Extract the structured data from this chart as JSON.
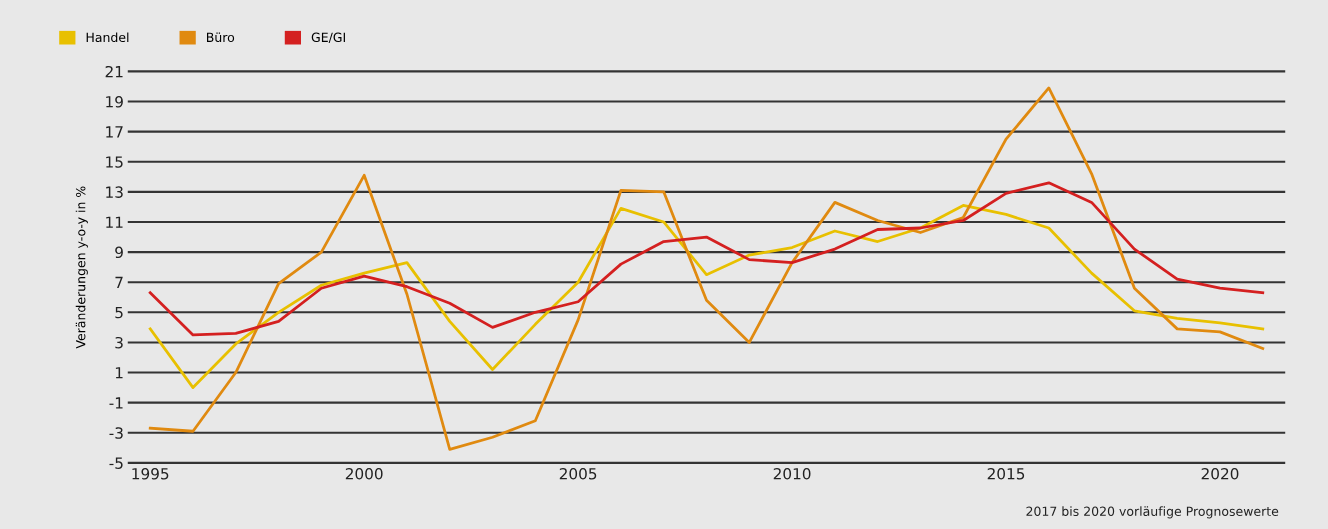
{
  "chart_data": {
    "type": "line",
    "ylabel": "Veränderungen y-o-y in %",
    "x": [
      1995,
      1996,
      1997,
      1998,
      1999,
      2000,
      2001,
      2002,
      2003,
      2004,
      2005,
      2006,
      2007,
      2008,
      2009,
      2010,
      2011,
      2012,
      2013,
      2014,
      2015,
      2016,
      2017,
      2018,
      2019,
      2020,
      2021
    ],
    "series": [
      {
        "name": "Handel",
        "color": "#e8c000",
        "values": [
          3.9,
          0.0,
          2.9,
          5.0,
          6.8,
          7.6,
          8.3,
          4.4,
          1.2,
          4.2,
          7.0,
          11.9,
          11.0,
          7.5,
          8.8,
          9.3,
          10.4,
          9.7,
          10.6,
          12.1,
          11.5,
          10.6,
          7.6,
          5.1,
          4.6,
          4.3,
          3.9
        ]
      },
      {
        "name": "Büro",
        "color": "#e08a10",
        "values": [
          -2.7,
          -2.9,
          1.0,
          6.9,
          9.0,
          14.1,
          6.2,
          -4.1,
          -3.3,
          -2.2,
          4.5,
          13.1,
          13.0,
          5.8,
          3.0,
          8.3,
          12.3,
          11.1,
          10.3,
          11.3,
          16.5,
          19.9,
          14.2,
          6.6,
          3.9,
          3.7,
          2.6
        ]
      },
      {
        "name": "GE/GI",
        "color": "#d42020",
        "values": [
          6.3,
          3.5,
          3.6,
          4.4,
          6.6,
          7.4,
          6.7,
          5.6,
          4.0,
          5.0,
          5.7,
          8.2,
          9.7,
          10.0,
          8.5,
          8.3,
          9.2,
          10.5,
          10.6,
          11.1,
          12.9,
          13.6,
          12.3,
          9.2,
          7.2,
          6.6,
          6.3
        ]
      }
    ],
    "xlim": [
      1994.5,
      2021.5
    ],
    "xticks": [
      1995,
      2000,
      2005,
      2010,
      2015,
      2020
    ],
    "ylim": [
      -5,
      21
    ],
    "yticks": [
      -5,
      -3,
      -1,
      1,
      3,
      5,
      7,
      9,
      11,
      13,
      15,
      17,
      19,
      21
    ],
    "grid": "y",
    "legend": "top left",
    "marker": "none",
    "line_style": "solid",
    "annotations": [
      "2017 bis 2020 vorläufige Prognosewerte"
    ]
  }
}
